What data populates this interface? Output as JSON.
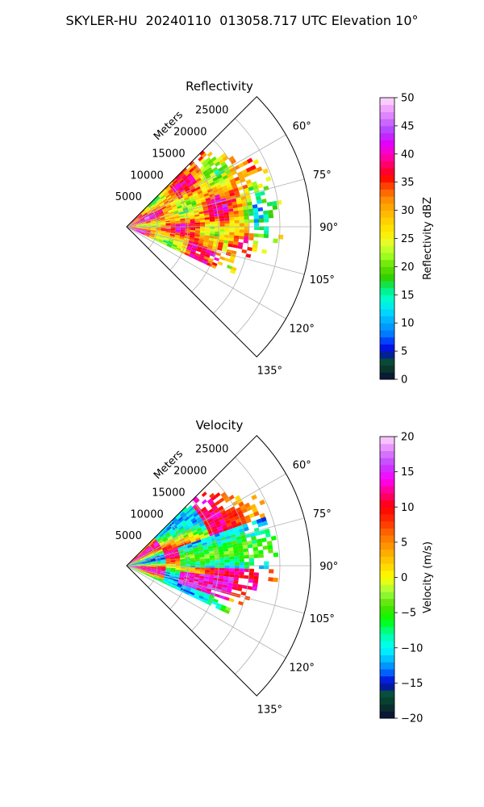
{
  "figure": {
    "title": "SKYLER-HU  20240110  013058.717 UTC Elevation 10°"
  },
  "chart_data": [
    {
      "type": "heatmap",
      "subtype": "polar-sector-radar",
      "title": "Reflectivity",
      "radial_axis_label": "Meters",
      "radial_ticks": [
        5000,
        10000,
        15000,
        20000,
        25000
      ],
      "radial_tick_labels": [
        "5000",
        "10000",
        "15000",
        "20000",
        "25000"
      ],
      "rlim": [
        0,
        30000
      ],
      "azimuth_ticks": [
        60,
        75,
        90,
        105,
        120,
        135
      ],
      "azimuth_tick_labels": [
        "60°",
        "75°",
        "90°",
        "105°",
        "120°",
        "135°"
      ],
      "azimuth_range_deg": [
        45,
        135
      ],
      "data_azimuth_range_deg": [
        45,
        115
      ],
      "colorbar": {
        "label": "Reflectivity dBZ",
        "range": [
          0,
          50
        ],
        "ticks": [
          0,
          5,
          10,
          15,
          20,
          25,
          30,
          35,
          40,
          45,
          50
        ],
        "tick_labels": [
          "0",
          "5",
          "10",
          "15",
          "20",
          "25",
          "30",
          "35",
          "40",
          "45",
          "50"
        ],
        "colormap": "NWSRef"
      },
      "grid": true
    },
    {
      "type": "heatmap",
      "subtype": "polar-sector-radar",
      "title": "Velocity",
      "radial_axis_label": "Meters",
      "radial_ticks": [
        5000,
        10000,
        15000,
        20000,
        25000
      ],
      "radial_tick_labels": [
        "5000",
        "10000",
        "15000",
        "20000",
        "25000"
      ],
      "rlim": [
        0,
        30000
      ],
      "azimuth_ticks": [
        60,
        75,
        90,
        105,
        120,
        135
      ],
      "azimuth_tick_labels": [
        "60°",
        "75°",
        "90°",
        "105°",
        "120°",
        "135°"
      ],
      "azimuth_range_deg": [
        45,
        135
      ],
      "data_azimuth_range_deg": [
        45,
        115
      ],
      "colorbar": {
        "label": "Velocity (m/s)",
        "range": [
          -20,
          20
        ],
        "ticks": [
          -20,
          -15,
          -10,
          -5,
          0,
          5,
          10,
          15,
          20
        ],
        "tick_labels": [
          "−20",
          "−15",
          "−10",
          "−5",
          "0",
          "5",
          "10",
          "15",
          "20"
        ],
        "colormap": "NWSVel"
      },
      "grid": true
    }
  ],
  "colormaps": {
    "NWSRef": [
      [
        0,
        "#0b0b3a"
      ],
      [
        2,
        "#0a3a2a"
      ],
      [
        3.5,
        "#084e3c"
      ],
      [
        5,
        "#0000d0"
      ],
      [
        6.5,
        "#0030ff"
      ],
      [
        8,
        "#0078ff"
      ],
      [
        10,
        "#00a8ff"
      ],
      [
        12,
        "#00d8ff"
      ],
      [
        14,
        "#00ffd8"
      ],
      [
        16,
        "#00f080"
      ],
      [
        18,
        "#30d000"
      ],
      [
        20,
        "#60e000"
      ],
      [
        22,
        "#a0ff20"
      ],
      [
        24,
        "#e0ff30"
      ],
      [
        26,
        "#ffee00"
      ],
      [
        28,
        "#ffd200"
      ],
      [
        30,
        "#ffb000"
      ],
      [
        32,
        "#ff8c00"
      ],
      [
        34,
        "#ff5000"
      ],
      [
        36,
        "#ff0000"
      ],
      [
        38,
        "#ff0060"
      ],
      [
        40,
        "#ff00c0"
      ],
      [
        42,
        "#e000ff"
      ],
      [
        44,
        "#b040ff"
      ],
      [
        46,
        "#d070ff"
      ],
      [
        48,
        "#f0a0ff"
      ],
      [
        50,
        "#ffe0ff"
      ]
    ],
    "NWSVel": [
      [
        -20,
        "#0b0b3a"
      ],
      [
        -18,
        "#0a3a2a"
      ],
      [
        -16.5,
        "#084e3c"
      ],
      [
        -15,
        "#0000d0"
      ],
      [
        -13.5,
        "#0060ff"
      ],
      [
        -12,
        "#00b0ff"
      ],
      [
        -10,
        "#00ffff"
      ],
      [
        -8,
        "#00ffa0"
      ],
      [
        -6,
        "#00ff00"
      ],
      [
        -4,
        "#50e000"
      ],
      [
        -2,
        "#a0ff40"
      ],
      [
        0,
        "#ffff00"
      ],
      [
        2,
        "#ffd000"
      ],
      [
        4,
        "#ffa000"
      ],
      [
        6,
        "#ff7000"
      ],
      [
        8,
        "#ff3000"
      ],
      [
        10,
        "#ff0000"
      ],
      [
        12,
        "#ff0080"
      ],
      [
        14,
        "#ff00ff"
      ],
      [
        16,
        "#c040ff"
      ],
      [
        18,
        "#e080ff"
      ],
      [
        20,
        "#ffd8ff"
      ]
    ]
  }
}
